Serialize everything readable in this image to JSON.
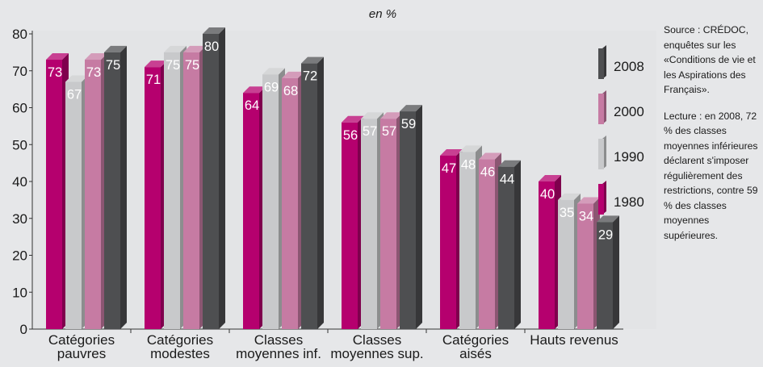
{
  "chart_data": {
    "type": "bar",
    "title": "en %",
    "xlabel": "",
    "ylabel": "",
    "ylim": [
      0,
      80
    ],
    "yticks": [
      0,
      10,
      20,
      30,
      40,
      50,
      60,
      70,
      80
    ],
    "grid": false,
    "legend_position": "right",
    "categories": [
      [
        "Catégories",
        "pauvres"
      ],
      [
        "Catégories",
        "modestes"
      ],
      [
        "Classes",
        "moyennes inf."
      ],
      [
        "Classes",
        "moyennes sup."
      ],
      [
        "Catégories",
        "aisés"
      ],
      [
        "Hauts revenus"
      ]
    ],
    "series": [
      {
        "name": "1980",
        "color": "#b5006e",
        "values": [
          73,
          71,
          64,
          56,
          47,
          40
        ]
      },
      {
        "name": "1990",
        "color": "#c8c9cb",
        "values": [
          67,
          75,
          69,
          57,
          48,
          35
        ]
      },
      {
        "name": "2000",
        "color": "#c67ba3",
        "values": [
          73,
          75,
          68,
          57,
          46,
          34
        ]
      },
      {
        "name": "2008",
        "color": "#4e4f51",
        "values": [
          75,
          80,
          72,
          59,
          44,
          29
        ]
      }
    ],
    "legend_order": [
      "2008",
      "2000",
      "1990",
      "1980"
    ]
  },
  "notes": {
    "source": "Source : CRÉDOC, enquêtes sur les «Conditions de vie et les Aspirations des Français».",
    "reading": "Lecture : en 2008, 72 % des classes moyennes inférieures déclarent s'imposer régulièrement des restrictions, contre 59 % des classes moyennes supérieures."
  }
}
